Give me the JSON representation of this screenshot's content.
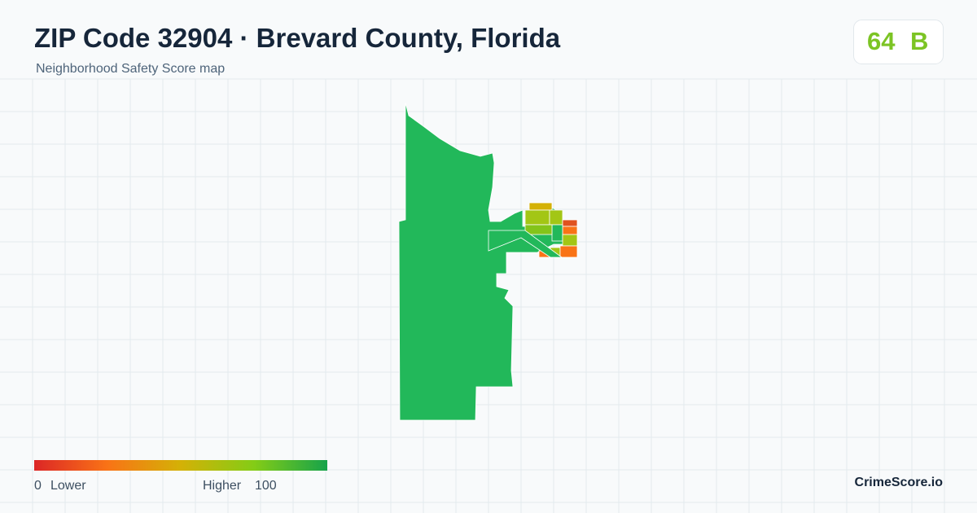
{
  "header": {
    "title": "ZIP Code 32904 · Brevard County, Florida",
    "subtitle": "Neighborhood Safety Score map"
  },
  "score": {
    "value": "64",
    "grade": "B"
  },
  "legend": {
    "min": "0",
    "min_text": "Lower",
    "max_text": "Higher",
    "max": "100"
  },
  "brand": "CrimeScore.io"
}
